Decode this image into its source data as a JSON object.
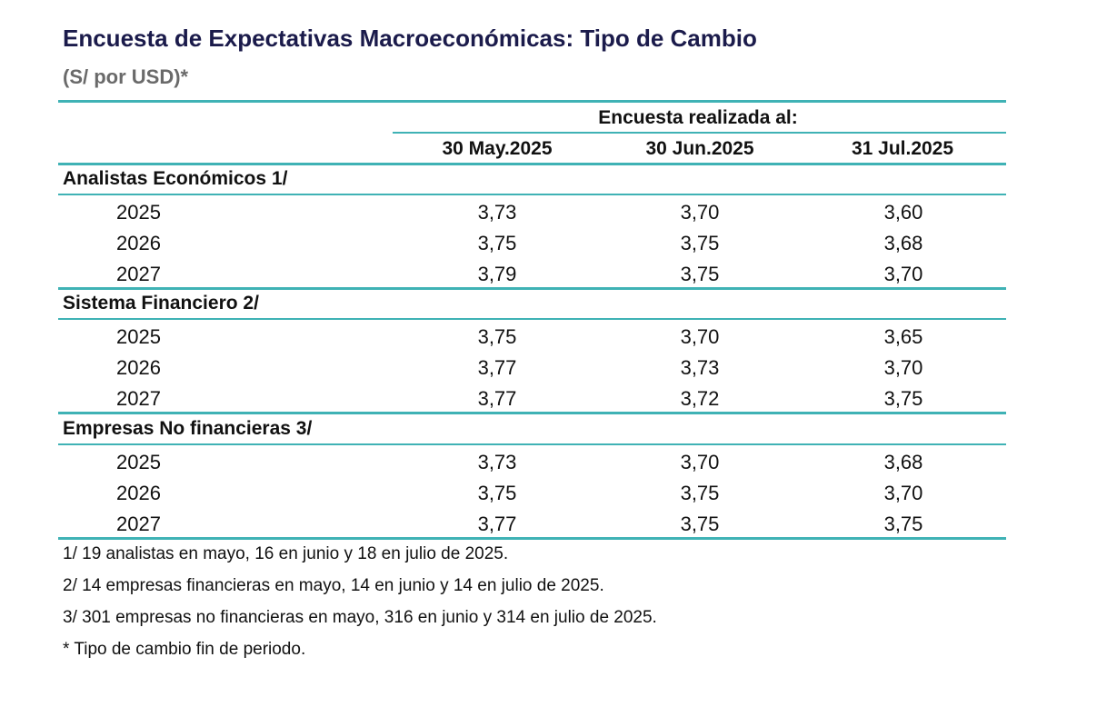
{
  "title": "Encuesta de Expectativas Macroeconómicas: Tipo de Cambio",
  "subtitle": "(S/ por USD)*",
  "header": {
    "group_label": "Encuesta realizada al:",
    "columns": [
      "30 May.2025",
      "30 Jun.2025",
      "31 Jul.2025"
    ]
  },
  "sections": [
    {
      "label": "Analistas Económicos 1/",
      "rows": [
        {
          "year": "2025",
          "values": [
            "3,73",
            "3,70",
            "3,60"
          ]
        },
        {
          "year": "2026",
          "values": [
            "3,75",
            "3,75",
            "3,68"
          ]
        },
        {
          "year": "2027",
          "values": [
            "3,79",
            "3,75",
            "3,70"
          ]
        }
      ]
    },
    {
      "label": "Sistema Financiero 2/",
      "rows": [
        {
          "year": "2025",
          "values": [
            "3,75",
            "3,70",
            "3,65"
          ]
        },
        {
          "year": "2026",
          "values": [
            "3,77",
            "3,73",
            "3,70"
          ]
        },
        {
          "year": "2027",
          "values": [
            "3,77",
            "3,72",
            "3,75"
          ]
        }
      ]
    },
    {
      "label": "Empresas No financieras 3/",
      "rows": [
        {
          "year": "2025",
          "values": [
            "3,73",
            "3,70",
            "3,68"
          ]
        },
        {
          "year": "2026",
          "values": [
            "3,75",
            "3,75",
            "3,70"
          ]
        },
        {
          "year": "2027",
          "values": [
            "3,77",
            "3,75",
            "3,75"
          ]
        }
      ]
    }
  ],
  "footnotes": [
    "1/  19 analistas en mayo, 16 en junio y 18 en julio de 2025.",
    "2/  14 empresas financieras en mayo, 14 en junio y 14 en julio de 2025.",
    "3/  301 empresas no financieras en mayo, 316 en junio y 314 en julio de 2025.",
    "* Tipo de cambio fin de periodo."
  ],
  "colors": {
    "title": "#1b1b4b",
    "rule": "#3fb2b5",
    "subtitle": "#6a6a6a"
  }
}
